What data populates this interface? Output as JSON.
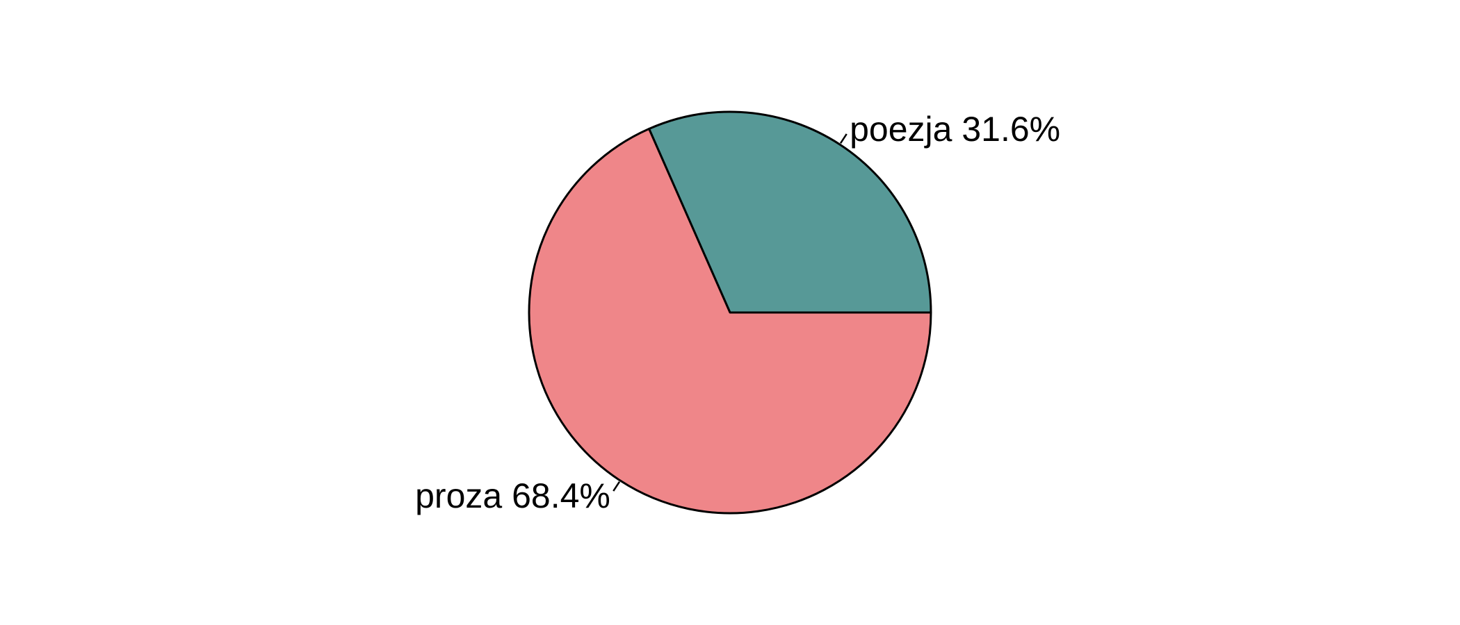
{
  "chart_data": {
    "type": "pie",
    "title": "",
    "start_angle_deg": 0,
    "direction": "counterclockwise",
    "slices": [
      {
        "name": "poezja",
        "percent": 31.6,
        "label": "poezja 31.6%",
        "color": "#579997"
      },
      {
        "name": "proza",
        "percent": 68.4,
        "label": "proza 68.4%",
        "color": "#EF8689"
      }
    ]
  }
}
